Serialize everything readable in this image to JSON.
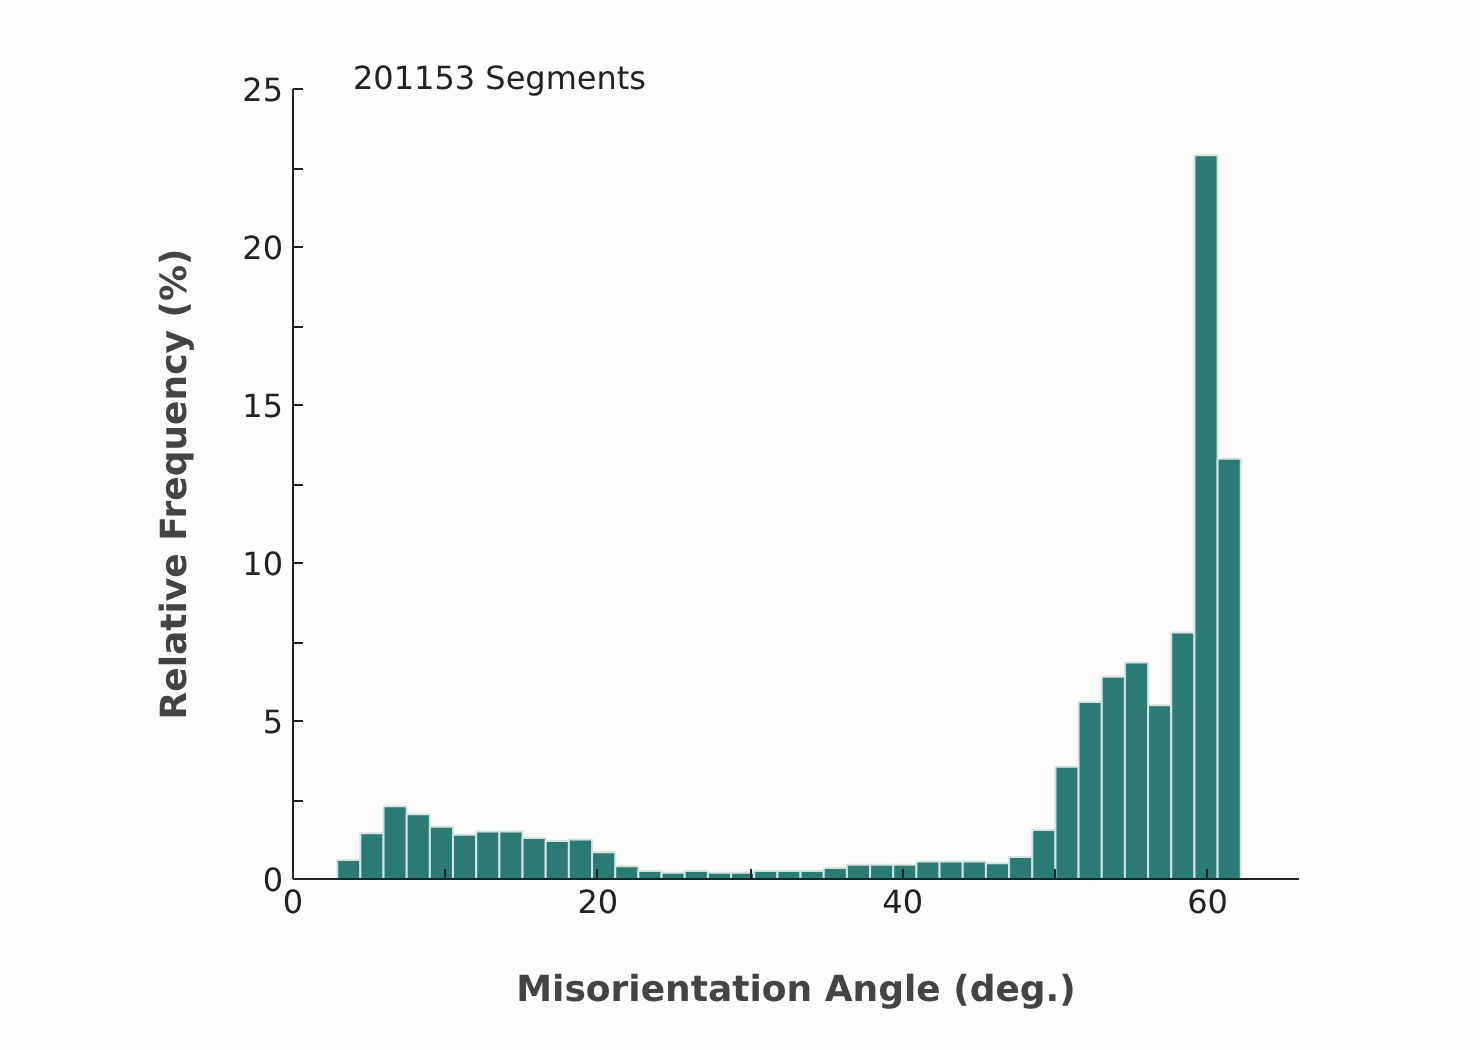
{
  "chart_data": {
    "type": "histogram",
    "xlabel": "Misorientation Angle (deg.)",
    "ylabel": "Relative Frequency (%)",
    "annotations": [
      "201153 Segments"
    ],
    "bins": [
      2.9,
      4.42,
      5.94,
      7.46,
      8.98,
      10.5,
      12.02,
      13.54,
      15.06,
      16.58,
      18.1,
      19.62,
      21.14,
      22.66,
      24.18,
      25.7,
      27.22,
      28.74,
      30.26,
      31.78,
      33.3,
      34.82,
      36.34,
      37.86,
      39.38,
      40.9,
      42.42,
      43.94,
      45.46,
      46.98,
      48.5,
      50.02,
      51.54,
      53.06,
      54.58,
      56.1,
      57.62,
      59.14,
      60.66,
      62.18
    ],
    "values": [
      0.6,
      1.45,
      2.3,
      2.05,
      1.65,
      1.4,
      1.5,
      1.5,
      1.3,
      1.2,
      1.25,
      0.85,
      0.4,
      0.25,
      0.2,
      0.25,
      0.2,
      0.2,
      0.25,
      0.25,
      0.25,
      0.35,
      0.45,
      0.45,
      0.45,
      0.55,
      0.55,
      0.55,
      0.5,
      0.7,
      1.55,
      3.55,
      5.6,
      6.4,
      6.85,
      5.5,
      7.8,
      22.9,
      13.3
    ],
    "color": "#2a7b74",
    "xlim": [
      0,
      66
    ],
    "ylim": [
      0,
      25
    ],
    "xticks": [
      0,
      {
        "value": 10,
        "label": null
      },
      20,
      {
        "value": 30,
        "label": null
      },
      40,
      {
        "value": 50,
        "label": null
      },
      60
    ],
    "yticks": [
      0,
      {
        "value": 2.5,
        "label": null
      },
      5,
      {
        "value": 7.5,
        "label": null
      },
      10,
      {
        "value": 12.5,
        "label": null
      },
      15,
      {
        "value": 17.5,
        "label": null
      },
      20,
      {
        "value": 22.5,
        "label": null
      },
      25
    ],
    "grid": false
  }
}
